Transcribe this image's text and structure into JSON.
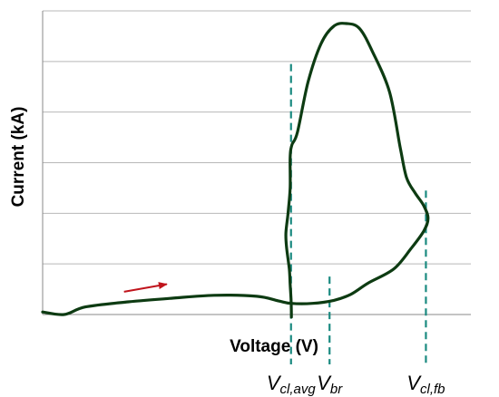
{
  "chart_data": {
    "type": "line",
    "xlabel": "Voltage (V)",
    "ylabel": "Current (kA)",
    "grid": "horizontal",
    "ylim": [
      0,
      6
    ],
    "xlim": [
      0,
      100
    ],
    "x_ticks_shown": false,
    "y_ticks_shown": false,
    "series": [
      {
        "color": "#0d3b12",
        "points": [
          [
            0,
            0.05
          ],
          [
            5,
            0.0
          ],
          [
            10,
            0.15
          ],
          [
            20,
            0.25
          ],
          [
            30,
            0.32
          ],
          [
            40,
            0.38
          ],
          [
            50,
            0.36
          ],
          [
            55,
            0.27
          ],
          [
            58,
            0.22
          ],
          [
            63,
            0.22
          ],
          [
            68,
            0.28
          ],
          [
            72,
            0.4
          ],
          [
            76,
            0.62
          ],
          [
            82,
            0.9
          ],
          [
            86,
            1.3
          ],
          [
            89,
            1.65
          ],
          [
            90,
            1.9
          ],
          [
            89,
            2.15
          ],
          [
            87,
            2.4
          ],
          [
            85,
            2.7
          ],
          [
            83.5,
            3.3
          ],
          [
            81,
            4.4
          ],
          [
            77,
            5.2
          ],
          [
            74,
            5.65
          ],
          [
            71,
            5.75
          ],
          [
            68,
            5.7
          ],
          [
            65,
            5.35
          ],
          [
            62,
            4.6
          ],
          [
            59.5,
            3.6
          ],
          [
            58.2,
            3.35
          ],
          [
            57.8,
            3.1
          ],
          [
            57.8,
            2.5
          ],
          [
            57.3,
            2.0
          ],
          [
            56.8,
            1.6
          ],
          [
            57.0,
            1.3
          ],
          [
            57.6,
            0.9
          ],
          [
            57.8,
            0.6
          ],
          [
            58.0,
            0.3
          ],
          [
            58.1,
            -0.05
          ]
        ]
      }
    ],
    "markers": [
      {
        "name": "V_cl,avg",
        "label": "V",
        "sub": "cl,avg",
        "x": 58.0,
        "y_top": 4.95,
        "color": "#1a8a80"
      },
      {
        "name": "V_br",
        "label": "V",
        "sub": "br",
        "x": 67.0,
        "y_top": 0.75,
        "color": "#1a8a80"
      },
      {
        "name": "V_cl,fb",
        "label": "V",
        "sub": "cl,fb",
        "x": 89.5,
        "y_top": 2.45,
        "color": "#1a8a80"
      }
    ],
    "annotation": {
      "type": "arrow",
      "color": "#c0141c",
      "from": [
        19,
        0.45
      ],
      "to": [
        29,
        0.6
      ]
    },
    "colors": {
      "grid": "#b8b8b8",
      "axis": "#888888",
      "curve": "#0d3b12",
      "marker": "#1a8a80",
      "arrow": "#c0141c"
    }
  }
}
